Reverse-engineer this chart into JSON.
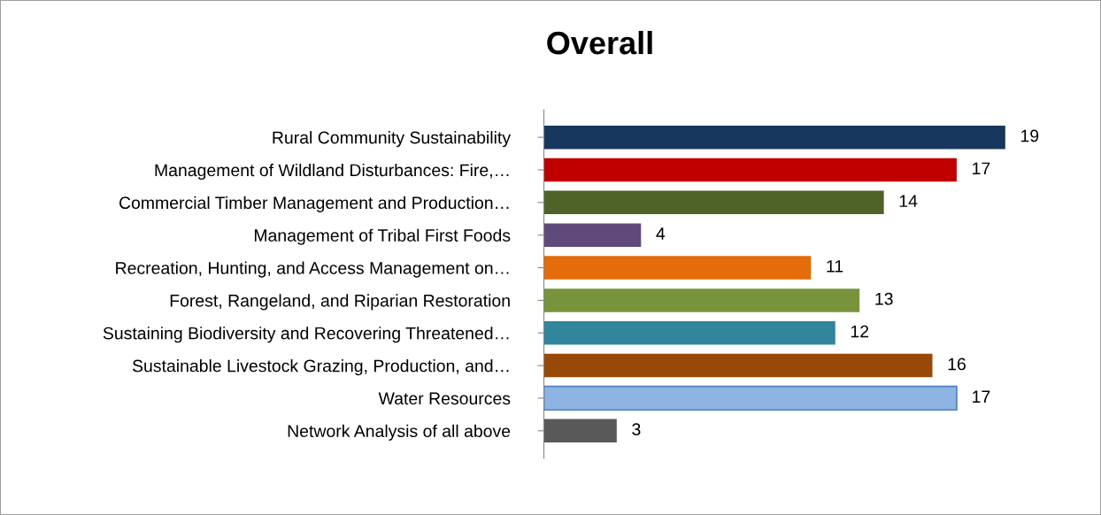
{
  "chart_data": {
    "type": "bar",
    "orientation": "horizontal",
    "title": "Overall",
    "categories": [
      "Rural Community Sustainability",
      "Management of Wildland Disturbances: Fire,…",
      "Commercial Timber Management and Production…",
      "Management of Tribal First Foods",
      "Recreation, Hunting, and Access Management on…",
      "Forest, Rangeland, and Riparian Restoration",
      "Sustaining Biodiversity and Recovering Threatened…",
      "Sustainable Livestock Grazing, Production, and…",
      "Water Resources",
      "Network Analysis of all above"
    ],
    "values": [
      19,
      17,
      14,
      4,
      11,
      13,
      12,
      16,
      17,
      3
    ],
    "colors": [
      "#17375e",
      "#c00000",
      "#4f6228",
      "#604a7b",
      "#e46c0a",
      "#77933c",
      "#31859c",
      "#984807",
      "#8eb4e3",
      "#595959"
    ],
    "data_labels": true,
    "grid": false,
    "legend": false
  }
}
